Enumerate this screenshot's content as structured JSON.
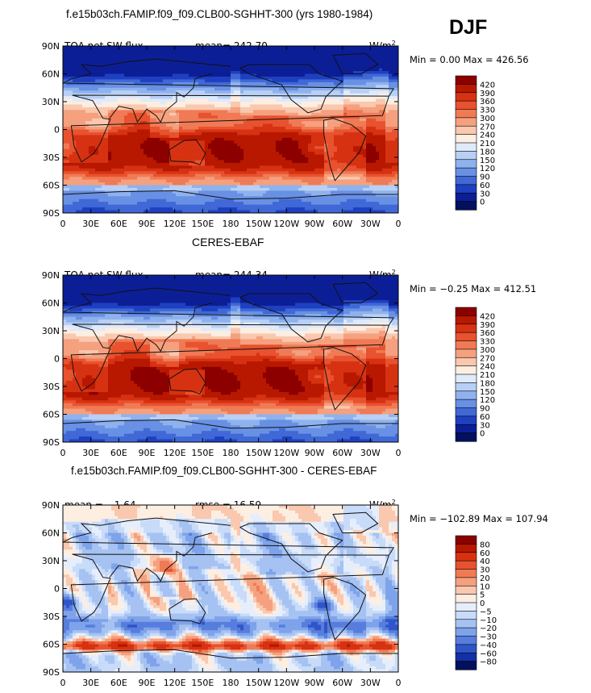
{
  "season": "DJF",
  "chart_data": [
    {
      "type": "heatmap",
      "title": "f.e15b03ch.FAMIP.f09_f09.CLB00-SGHHT-300 (yrs 1980-1984)",
      "left_label": "TOA net SW flux",
      "stat_label": "mean= 242.70",
      "units_label": "W/m",
      "units_sup": "2",
      "min_label": "Min =",
      "min_value": "0.00",
      "max_label": "Max =",
      "max_value": "426.56",
      "mean": 242.7,
      "min": 0.0,
      "max": 426.56,
      "field": "model",
      "x_ticks": [
        "0",
        "30E",
        "60E",
        "90E",
        "120E",
        "150E",
        "180",
        "150W",
        "120W",
        "90W",
        "60W",
        "30W",
        "0"
      ],
      "y_ticks": [
        "90N",
        "60N",
        "30N",
        "0",
        "30S",
        "60S",
        "90S"
      ],
      "colorbar_levels": [
        "420",
        "390",
        "360",
        "330",
        "300",
        "270",
        "240",
        "210",
        "180",
        "150",
        "120",
        "90",
        "60",
        "30",
        "0"
      ],
      "colorbar_colors": [
        "#8c0000",
        "#b81800",
        "#d63212",
        "#e8522e",
        "#f07a55",
        "#f5a07e",
        "#f9c8ae",
        "#fdeee2",
        "#dfeafb",
        "#b8d0f5",
        "#8eb2ee",
        "#6890e4",
        "#4068d6",
        "#1e40c0",
        "#0c1e96",
        "#02105e"
      ]
    },
    {
      "type": "heatmap",
      "title": "CERES-EBAF",
      "left_label": "TOA net SW flux",
      "stat_label": "mean= 244.34",
      "units_label": "W/m",
      "units_sup": "2",
      "min_label": "Min =",
      "min_value": "−0.25",
      "max_label": "Max =",
      "max_value": "412.51",
      "mean": 244.34,
      "min": -0.25,
      "max": 412.51,
      "field": "obs",
      "x_ticks": [
        "0",
        "30E",
        "60E",
        "90E",
        "120E",
        "150E",
        "180",
        "150W",
        "120W",
        "90W",
        "60W",
        "30W",
        "0"
      ],
      "y_ticks": [
        "90N",
        "60N",
        "30N",
        "0",
        "30S",
        "60S",
        "90S"
      ],
      "colorbar_levels": [
        "420",
        "390",
        "360",
        "330",
        "300",
        "270",
        "240",
        "210",
        "180",
        "150",
        "120",
        "90",
        "60",
        "30",
        "0"
      ],
      "colorbar_colors": [
        "#8c0000",
        "#b81800",
        "#d63212",
        "#e8522e",
        "#f07a55",
        "#f5a07e",
        "#f9c8ae",
        "#fdeee2",
        "#dfeafb",
        "#b8d0f5",
        "#8eb2ee",
        "#6890e4",
        "#4068d6",
        "#1e40c0",
        "#0c1e96",
        "#02105e"
      ]
    },
    {
      "type": "heatmap",
      "title": "f.e15b03ch.FAMIP.f09_f09.CLB00-SGHHT-300 - CERES-EBAF",
      "left_label": "mean =   −1.64",
      "stat_label": "rmse =   16.59",
      "units_label": "W/m",
      "units_sup": "2",
      "min_label": "Min =",
      "min_value": "−102.89",
      "max_label": "Max =",
      "max_value": "107.94",
      "mean": -1.64,
      "rmse": 16.59,
      "min": -102.89,
      "max": 107.94,
      "field": "diff",
      "x_ticks": [
        "0",
        "30E",
        "60E",
        "90E",
        "120E",
        "150E",
        "180",
        "150W",
        "120W",
        "90W",
        "60W",
        "30W",
        "0"
      ],
      "y_ticks": [
        "90N",
        "60N",
        "30N",
        "0",
        "30S",
        "60S",
        "90S"
      ],
      "colorbar_levels": [
        "80",
        "60",
        "40",
        "30",
        "20",
        "10",
        "5",
        "0",
        "−5",
        "−10",
        "−20",
        "−30",
        "−40",
        "−60",
        "−80"
      ],
      "colorbar_colors": [
        "#8c0000",
        "#b81800",
        "#d63212",
        "#e8522e",
        "#f07a55",
        "#f5a07e",
        "#f9c8ae",
        "#fdeee2",
        "#e6eefc",
        "#c8dbf8",
        "#a6c2f2",
        "#7fa3ea",
        "#577ddd",
        "#2f55c8",
        "#1430a8",
        "#02105e"
      ]
    }
  ]
}
